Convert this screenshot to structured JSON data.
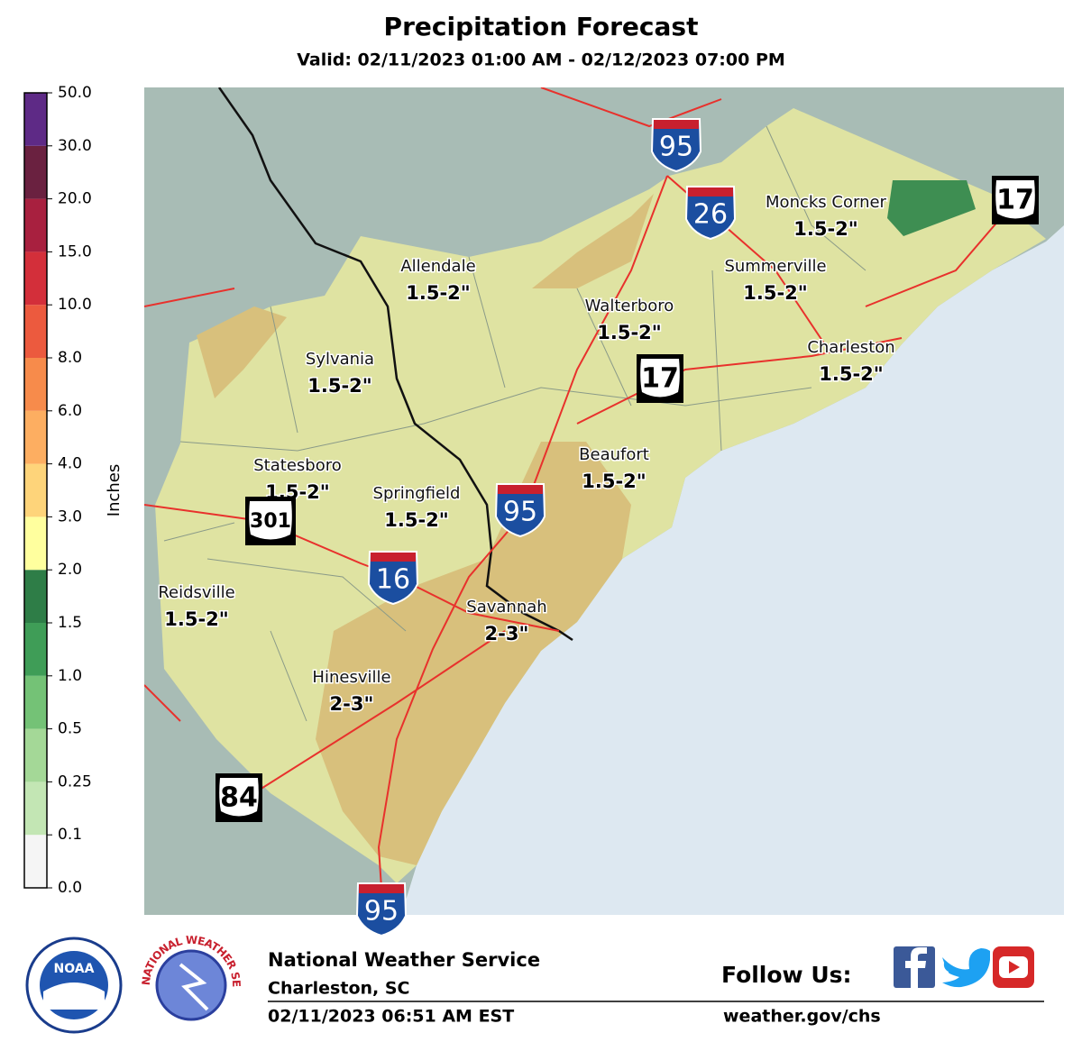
{
  "header": {
    "title": "Precipitation Forecast",
    "subtitle": "Valid: 02/11/2023 01:00 AM - 02/12/2023 07:00 PM"
  },
  "legend": {
    "label": "Inches",
    "ticks": [
      "0.0",
      "0.1",
      "0.25",
      "0.5",
      "1.0",
      "1.5",
      "2.0",
      "3.0",
      "4.0",
      "6.0",
      "8.0",
      "10.0",
      "15.0",
      "20.0",
      "30.0",
      "50.0"
    ],
    "colors": [
      "#f5f5f5",
      "#c3e6b4",
      "#a4d897",
      "#74c276",
      "#3f9d57",
      "#2e7d47",
      "#ffff9e",
      "#fed47a",
      "#fdae61",
      "#f78b4b",
      "#ec5a3e",
      "#d32f3a",
      "#a8203f",
      "#6a2140",
      "#5e2a86",
      "#ffd6f7"
    ]
  },
  "map": {
    "places": [
      {
        "name": "Allendale",
        "amount": "1.5-2\""
      },
      {
        "name": "Moncks Corner",
        "amount": "1.5-2\""
      },
      {
        "name": "Summerville",
        "amount": "1.5-2\""
      },
      {
        "name": "Walterboro",
        "amount": "1.5-2\""
      },
      {
        "name": "Sylvania",
        "amount": "1.5-2\""
      },
      {
        "name": "Charleston",
        "amount": "1.5-2\""
      },
      {
        "name": "Beaufort",
        "amount": "1.5-2\""
      },
      {
        "name": "Statesboro",
        "amount": "1.5-2\""
      },
      {
        "name": "Springfield",
        "amount": "1.5-2\""
      },
      {
        "name": "Reidsville",
        "amount": "1.5-2\""
      },
      {
        "name": "Savannah",
        "amount": "2-3\""
      },
      {
        "name": "Hinesville",
        "amount": "2-3\""
      }
    ],
    "shields": [
      {
        "kind": "interstate",
        "number": "95"
      },
      {
        "kind": "interstate",
        "number": "26"
      },
      {
        "kind": "us",
        "number": "17"
      },
      {
        "kind": "us",
        "number": "17"
      },
      {
        "kind": "interstate",
        "number": "95"
      },
      {
        "kind": "us",
        "number": "301"
      },
      {
        "kind": "interstate",
        "number": "16"
      },
      {
        "kind": "us",
        "number": "84"
      },
      {
        "kind": "interstate",
        "number": "95"
      }
    ]
  },
  "footer": {
    "noaa": "NOAA",
    "nws_ring": "NATIONAL WEATHER SERVICE",
    "office": "National Weather Service",
    "location": "Charleston, SC",
    "issued": "02/11/2023 06:51 AM EST",
    "follow": "Follow Us:",
    "url": "weather.gov/chs"
  }
}
